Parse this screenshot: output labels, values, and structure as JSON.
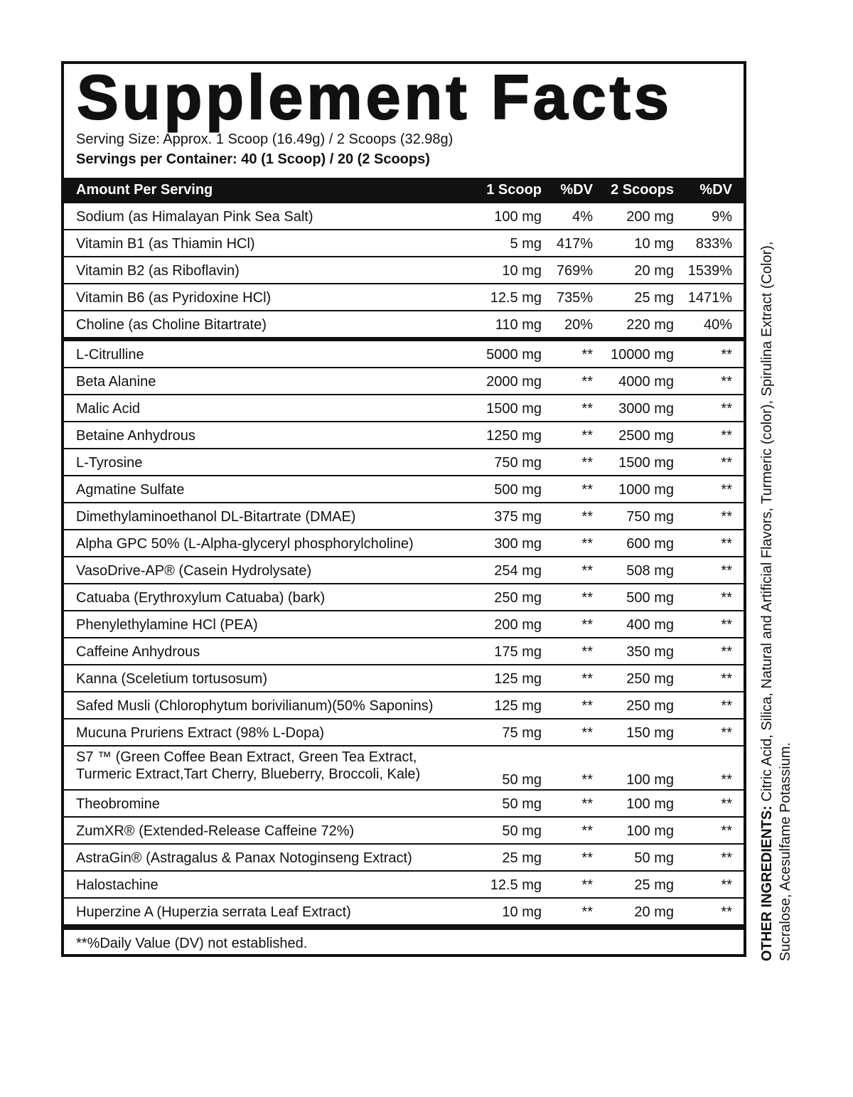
{
  "title": "Supplement Facts",
  "serving_size": "Serving Size: Approx. 1 Scoop (16.49g) / 2 Scoops (32.98g)",
  "servings_per_container": "Servings per Container: 40 (1 Scoop)  / 20 (2 Scoops)",
  "header": {
    "name": "Amount Per Serving",
    "amount1": "1 Scoop",
    "dv1": "%DV",
    "amount2": "2 Scoops",
    "dv2": "%DV"
  },
  "vitamins": [
    {
      "name": "Sodium (as Himalayan Pink Sea Salt)",
      "amount1": "100 mg",
      "dv1": "4%",
      "amount2": "200 mg",
      "dv2": "9%"
    },
    {
      "name": "Vitamin B1 (as Thiamin HCl)",
      "amount1": "5 mg",
      "dv1": "417%",
      "amount2": "10 mg",
      "dv2": "833%"
    },
    {
      "name": "Vitamin B2 (as Riboflavin)",
      "amount1": "10 mg",
      "dv1": "769%",
      "amount2": "20 mg",
      "dv2": "1539%"
    },
    {
      "name": "Vitamin B6 (as Pyridoxine HCl)",
      "amount1": "12.5 mg",
      "dv1": "735%",
      "amount2": "25 mg",
      "dv2": "1471%"
    },
    {
      "name": "Choline (as Choline Bitartrate)",
      "amount1": "110 mg",
      "dv1": "20%",
      "amount2": "220 mg",
      "dv2": "40%"
    }
  ],
  "ingredients": [
    {
      "name": "L-Citrulline",
      "amount1": "5000 mg",
      "dv1": "**",
      "amount2": "10000 mg",
      "dv2": "**"
    },
    {
      "name": "Beta Alanine",
      "amount1": "2000 mg",
      "dv1": "**",
      "amount2": "4000 mg",
      "dv2": "**"
    },
    {
      "name": "Malic Acid",
      "amount1": "1500 mg",
      "dv1": "**",
      "amount2": "3000 mg",
      "dv2": "**"
    },
    {
      "name": "Betaine Anhydrous",
      "amount1": "1250 mg",
      "dv1": "**",
      "amount2": "2500 mg",
      "dv2": "**"
    },
    {
      "name": "L-Tyrosine",
      "amount1": "750 mg",
      "dv1": "**",
      "amount2": "1500 mg",
      "dv2": "**"
    },
    {
      "name": "Agmatine Sulfate",
      "amount1": "500 mg",
      "dv1": "**",
      "amount2": "1000 mg",
      "dv2": "**"
    },
    {
      "name": "Dimethylaminoethanol DL-Bitartrate (DMAE)",
      "amount1": "375 mg",
      "dv1": "**",
      "amount2": "750 mg",
      "dv2": "**"
    },
    {
      "name": "Alpha GPC 50% (L-Alpha-glyceryl phosphorylcholine)",
      "amount1": "300 mg",
      "dv1": "**",
      "amount2": "600 mg",
      "dv2": "**"
    },
    {
      "name": "VasoDrive-AP® (Casein Hydrolysate)",
      "amount1": "254 mg",
      "dv1": "**",
      "amount2": "508 mg",
      "dv2": "**"
    },
    {
      "name": "Catuaba (Erythroxylum Catuaba) (bark)",
      "amount1": "250 mg",
      "dv1": "**",
      "amount2": "500 mg",
      "dv2": "**"
    },
    {
      "name": "Phenylethylamine HCl (PEA)",
      "amount1": "200 mg",
      "dv1": "**",
      "amount2": "400 mg",
      "dv2": "**"
    },
    {
      "name": "Caffeine Anhydrous",
      "amount1": "175 mg",
      "dv1": "**",
      "amount2": "350 mg",
      "dv2": "**"
    },
    {
      "name": "Kanna (Sceletium tortusosum)",
      "amount1": "125 mg",
      "dv1": "**",
      "amount2": "250 mg",
      "dv2": "**"
    },
    {
      "name": "Safed Musli (Chlorophytum borivilianum)(50% Saponins)",
      "amount1": "125 mg",
      "dv1": "**",
      "amount2": "250 mg",
      "dv2": "**"
    },
    {
      "name": "Mucuna Pruriens Extract (98% L-Dopa)",
      "amount1": "75 mg",
      "dv1": "**",
      "amount2": "150 mg",
      "dv2": "**"
    },
    {
      "name": "S7 ™ (Green Coffee Bean Extract, Green Tea Extract,",
      "name2": "Turmeric Extract,Tart Cherry, Blueberry, Broccoli, Kale)",
      "amount1": "50 mg",
      "dv1": "**",
      "amount2": "100 mg",
      "dv2": "**"
    },
    {
      "name": "Theobromine",
      "amount1": "50 mg",
      "dv1": "**",
      "amount2": "100 mg",
      "dv2": "**"
    },
    {
      "name": "ZumXR® (Extended-Release Caffeine 72%)",
      "amount1": "50 mg",
      "dv1": "**",
      "amount2": "100 mg",
      "dv2": "**"
    },
    {
      "name": "AstraGin® (Astragalus & Panax Notoginseng Extract)",
      "amount1": "25 mg",
      "dv1": "**",
      "amount2": "50 mg",
      "dv2": "**"
    },
    {
      "name": "Halostachine",
      "amount1": "12.5 mg",
      "dv1": "**",
      "amount2": "25 mg",
      "dv2": "**"
    },
    {
      "name": "Huperzine A (Huperzia serrata Leaf Extract)",
      "amount1": "10 mg",
      "dv1": "**",
      "amount2": "20 mg",
      "dv2": "**"
    }
  ],
  "footnote": "**%Daily Value (DV) not established.",
  "other_ingredients": {
    "label": "OTHER INGREDIENTS:",
    "line1": " Citric Acid, Silica, Natural and Artificial Flavors, Turmeric (color), Spirulina Extract (Color),",
    "line2": "Sucralose, Acesulfame Potassium."
  }
}
